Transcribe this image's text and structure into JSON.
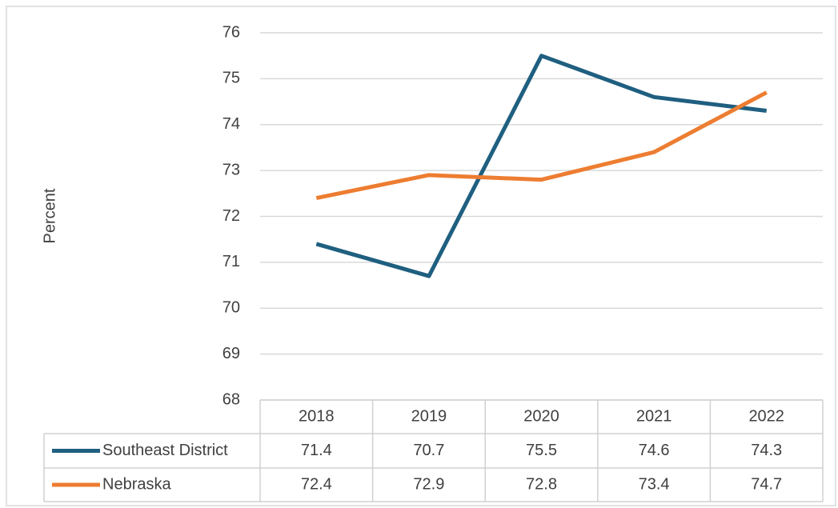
{
  "chart_data": {
    "type": "line",
    "y_label": "Percent",
    "categories": [
      "2018",
      "2019",
      "2020",
      "2021",
      "2022"
    ],
    "series": [
      {
        "name": "Southeast District",
        "color": "#1f5f80",
        "values": [
          71.4,
          70.7,
          75.5,
          74.6,
          74.3
        ]
      },
      {
        "name": "Nebraska",
        "color": "#ed7d31",
        "values": [
          72.4,
          72.9,
          72.8,
          73.4,
          74.7
        ]
      }
    ],
    "ylim": [
      68,
      76
    ],
    "yticks": [
      68,
      69,
      70,
      71,
      72,
      73,
      74,
      75,
      76
    ],
    "grid": true
  }
}
